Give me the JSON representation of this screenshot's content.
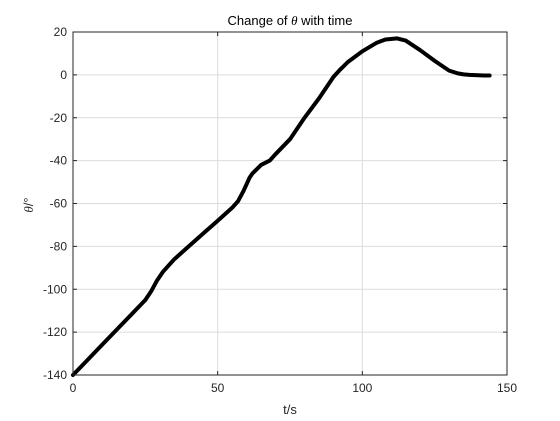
{
  "chart_data": {
    "type": "line",
    "title_text": "Change of ",
    "title_symbol": "θ",
    "title_suffix": " with time",
    "xlabel": "t/s",
    "ylabel_symbol": "θ",
    "ylabel_unit": "/°",
    "xlim": [
      0,
      150
    ],
    "ylim": [
      -140,
      20
    ],
    "xticks": [
      0,
      50,
      100,
      150
    ],
    "yticks": [
      -140,
      -120,
      -100,
      -80,
      -60,
      -40,
      -20,
      0,
      20
    ],
    "grid": true,
    "series": [
      {
        "color": "#000000",
        "x": [
          0,
          5,
          10,
          15,
          20,
          25,
          27,
          29,
          31,
          35,
          40,
          45,
          50,
          55,
          57,
          59,
          61,
          62,
          65,
          68,
          70,
          75,
          80,
          85,
          90,
          92,
          95,
          100,
          105,
          108,
          112,
          115,
          120,
          125,
          130,
          133,
          135,
          137,
          140,
          142,
          144
        ],
        "y": [
          -140,
          -133,
          -126,
          -119,
          -112,
          -105,
          -101,
          -96,
          -92,
          -86,
          -80,
          -74,
          -68,
          -62,
          -59,
          -54,
          -48,
          -46,
          -42,
          -40,
          -37,
          -30,
          -20,
          -11,
          -1,
          2,
          6,
          11,
          15,
          16.5,
          17,
          16,
          11.5,
          6.5,
          2,
          0.7,
          0.2,
          0,
          -0.2,
          -0.3,
          -0.3
        ]
      }
    ]
  }
}
